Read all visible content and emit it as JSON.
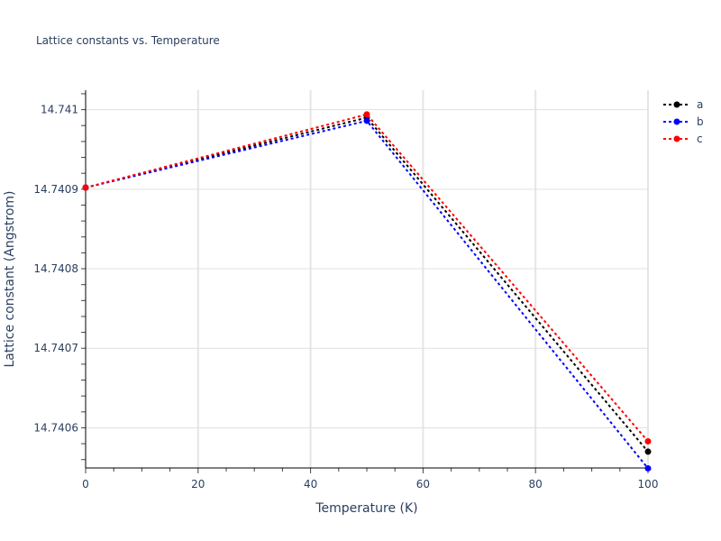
{
  "chart_data": {
    "type": "line",
    "title": "Lattice constants vs. Temperature",
    "xlabel": "Temperature (K)",
    "ylabel": "Lattice constant (Angstrom)",
    "x": [
      0,
      50,
      100
    ],
    "series": [
      {
        "name": "a",
        "color": "#000000",
        "values": [
          14.740902,
          14.74099,
          14.74057
        ]
      },
      {
        "name": "b",
        "color": "#0000ff",
        "values": [
          14.740902,
          14.740986,
          14.740549
        ]
      },
      {
        "name": "c",
        "color": "#ff0000",
        "values": [
          14.740902,
          14.740994,
          14.740583
        ]
      }
    ],
    "xlim": [
      0,
      100
    ],
    "ylim": [
      14.7405495,
      14.7410245
    ],
    "xticks": [
      "0",
      "20",
      "40",
      "60",
      "80",
      "100"
    ],
    "yticks": [
      "14.7406",
      "14.7407",
      "14.7408",
      "14.7409",
      "14.741"
    ],
    "grid": true,
    "legend_position": "top-right outside",
    "line_style": "dotted with markers"
  }
}
